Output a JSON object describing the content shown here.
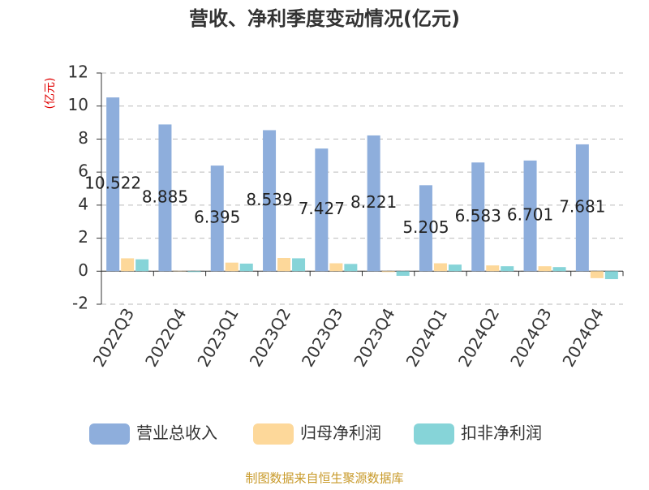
{
  "chart_data": {
    "type": "bar",
    "title": "营收、净利季度变动情况(亿元)",
    "y_unit": "(亿元)",
    "source": "制图数据来自恒生聚源数据库",
    "categories": [
      "2022Q3",
      "2022Q4",
      "2023Q1",
      "2023Q2",
      "2023Q3",
      "2023Q4",
      "2024Q1",
      "2024Q2",
      "2024Q3",
      "2024Q4"
    ],
    "series": [
      {
        "name": "营业总收入",
        "color": "#8eaedc",
        "show_labels": true,
        "values": [
          10.522,
          8.885,
          6.395,
          8.539,
          7.427,
          8.221,
          5.205,
          6.583,
          6.701,
          7.681
        ]
      },
      {
        "name": "归母净利润",
        "color": "#fdd89a",
        "values": [
          0.78,
          0.02,
          0.52,
          0.8,
          0.48,
          -0.05,
          0.48,
          0.35,
          0.3,
          -0.42
        ]
      },
      {
        "name": "扣非净利润",
        "color": "#86d4d8",
        "values": [
          0.72,
          -0.05,
          0.46,
          0.78,
          0.44,
          -0.28,
          0.4,
          0.3,
          0.25,
          -0.48
        ]
      }
    ],
    "ylim": [
      -2,
      12
    ],
    "yticks": [
      -2,
      0,
      2,
      4,
      6,
      8,
      10,
      12
    ],
    "grid": true
  }
}
